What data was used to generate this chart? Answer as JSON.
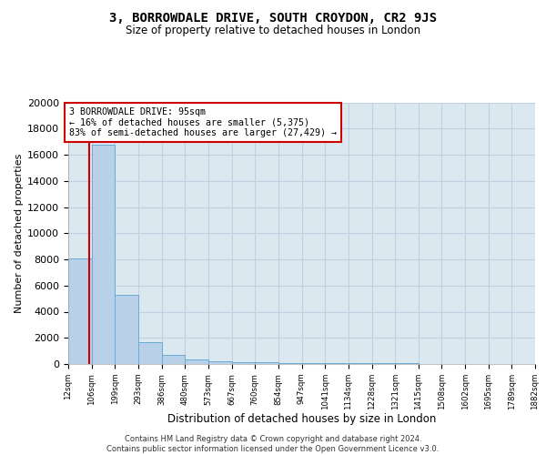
{
  "title1": "3, BORROWDALE DRIVE, SOUTH CROYDON, CR2 9JS",
  "title2": "Size of property relative to detached houses in London",
  "xlabel": "Distribution of detached houses by size in London",
  "ylabel": "Number of detached properties",
  "property_size": 95,
  "pct_smaller": 16,
  "n_smaller": 5375,
  "pct_larger": 83,
  "n_larger": 27429,
  "bin_edges": [
    12,
    106,
    199,
    293,
    386,
    480,
    573,
    667,
    760,
    854,
    947,
    1041,
    1134,
    1228,
    1321,
    1415,
    1508,
    1602,
    1695,
    1789,
    1882
  ],
  "bin_counts": [
    8050,
    16800,
    5300,
    1700,
    680,
    340,
    210,
    160,
    120,
    95,
    75,
    65,
    55,
    45,
    38,
    32,
    27,
    22,
    18,
    13
  ],
  "bar_color": "#b8d0e8",
  "bar_edge_color": "#6aaad4",
  "line_color": "#cc0000",
  "annotation_box_color": "#ffffff",
  "annotation_box_edge": "#cc0000",
  "grid_color": "#c0d0e0",
  "bg_color": "#dce8f0",
  "ylim": [
    0,
    20000
  ],
  "yticks": [
    0,
    2000,
    4000,
    6000,
    8000,
    10000,
    12000,
    14000,
    16000,
    18000,
    20000
  ],
  "tick_labels": [
    "12sqm",
    "106sqm",
    "199sqm",
    "293sqm",
    "386sqm",
    "480sqm",
    "573sqm",
    "667sqm",
    "760sqm",
    "854sqm",
    "947sqm",
    "1041sqm",
    "1134sqm",
    "1228sqm",
    "1321sqm",
    "1415sqm",
    "1508sqm",
    "1602sqm",
    "1695sqm",
    "1789sqm",
    "1882sqm"
  ],
  "footer_line1": "Contains HM Land Registry data © Crown copyright and database right 2024.",
  "footer_line2": "Contains public sector information licensed under the Open Government Licence v3.0."
}
